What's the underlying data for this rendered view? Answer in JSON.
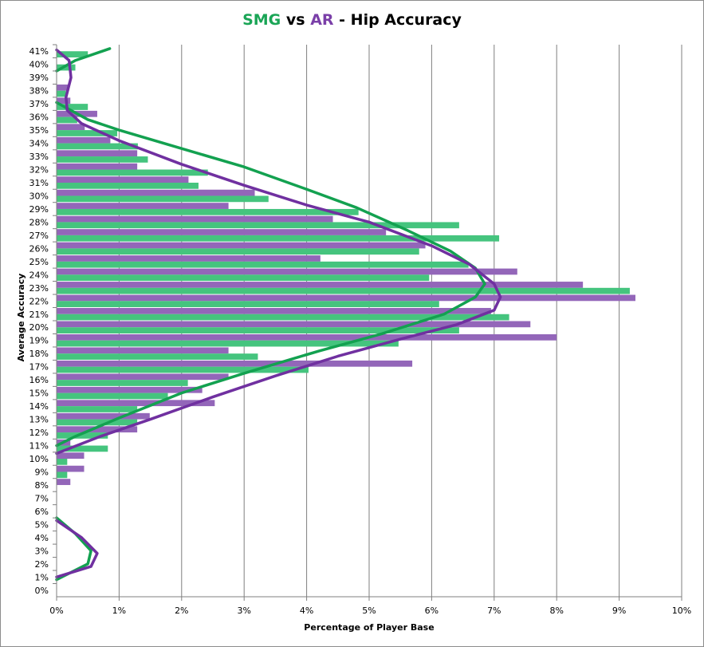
{
  "chart_data": {
    "type": "bar",
    "orientation": "horizontal",
    "title": {
      "part1": "SMG",
      "part2": " vs ",
      "part3": "AR",
      "part4": " - Hip Accuracy"
    },
    "xlabel": "Percentage of Player Base",
    "ylabel": "Average Accuracy",
    "xlim": [
      0,
      10
    ],
    "x_ticks": [
      "0%",
      "1%",
      "2%",
      "3%",
      "4%",
      "5%",
      "6%",
      "7%",
      "8%",
      "9%",
      "10%"
    ],
    "categories": [
      "0%",
      "1%",
      "2%",
      "3%",
      "4%",
      "5%",
      "6%",
      "7%",
      "8%",
      "9%",
      "10%",
      "11%",
      "12%",
      "13%",
      "14%",
      "15%",
      "16%",
      "17%",
      "18%",
      "19%",
      "20%",
      "21%",
      "22%",
      "23%",
      "24%",
      "25%",
      "26%",
      "27%",
      "28%",
      "29%",
      "30%",
      "31%",
      "32%",
      "33%",
      "34%",
      "35%",
      "36%",
      "37%",
      "38%",
      "39%",
      "40%",
      "41%"
    ],
    "grid": "vertical",
    "series": [
      {
        "name": "SMG",
        "color": "#45c47e",
        "values": [
          0,
          0,
          0,
          0,
          0,
          0,
          0,
          0,
          0,
          0.17,
          0.17,
          0.82,
          0.82,
          1.29,
          1.29,
          1.78,
          2.1,
          4.03,
          3.22,
          5.47,
          6.44,
          7.24,
          6.12,
          9.17,
          5.96,
          6.59,
          5.8,
          7.08,
          6.44,
          4.83,
          3.39,
          2.27,
          2.42,
          1.46,
          1.3,
          0.97,
          0.33,
          0.5,
          0.15,
          0,
          0.3,
          0.5
        ]
      },
      {
        "name": "AR",
        "color": "#9366b9",
        "values": [
          0,
          0,
          0,
          0,
          0,
          0,
          0,
          0,
          0.22,
          0.44,
          0.44,
          0.22,
          1.29,
          1.49,
          2.53,
          2.33,
          2.75,
          5.69,
          2.75,
          8.0,
          7.58,
          6.95,
          9.26,
          8.42,
          7.37,
          4.22,
          5.9,
          5.27,
          4.42,
          2.75,
          3.17,
          2.11,
          1.29,
          1.29,
          0.86,
          0.45,
          0.65,
          0.22,
          0.18,
          0,
          0,
          0
        ]
      }
    ],
    "trendlines": [
      {
        "series": "SMG",
        "color": "#13a150",
        "segments": [
          [
            [
              0,
              39.5
            ],
            [
              0.3,
              40.3
            ],
            [
              0.85,
              41.2
            ]
          ],
          [
            [
              0,
              37.1
            ],
            [
              0.5,
              35.8
            ],
            [
              1,
              35
            ],
            [
              2,
              33.6
            ],
            [
              3,
              32.2
            ],
            [
              4,
              30.5
            ],
            [
              4.8,
              29.1
            ],
            [
              5.6,
              27.4
            ],
            [
              6.3,
              25.8
            ],
            [
              6.7,
              24.5
            ],
            [
              6.85,
              23.3
            ],
            [
              6.7,
              22.3
            ],
            [
              6.2,
              21
            ],
            [
              5.2,
              19.5
            ],
            [
              4.2,
              18.2
            ],
            [
              3,
              16.5
            ],
            [
              2,
              15
            ],
            [
              1,
              13.1
            ],
            [
              0.3,
              11.7
            ],
            [
              0,
              11
            ]
          ],
          [
            [
              0,
              5.5
            ],
            [
              0.3,
              4.3
            ],
            [
              0.55,
              3
            ],
            [
              0.5,
              2
            ],
            [
              0,
              0.8
            ]
          ]
        ]
      },
      {
        "series": "AR",
        "color": "#7030a0",
        "segments": [
          [
            [
              0,
              41.1
            ],
            [
              0.2,
              40.3
            ],
            [
              0.23,
              39
            ],
            [
              0.15,
              37.5
            ],
            [
              0.17,
              36.5
            ],
            [
              0.4,
              35.5
            ],
            [
              1,
              34.2
            ],
            [
              2,
              32.4
            ],
            [
              3,
              30.8
            ],
            [
              4,
              29.3
            ],
            [
              5,
              28
            ],
            [
              6,
              26.2
            ],
            [
              6.6,
              24.8
            ],
            [
              7,
              23.3
            ],
            [
              7.1,
              22.3
            ],
            [
              7,
              21.3
            ],
            [
              6.4,
              20.2
            ],
            [
              5.5,
              19.1
            ],
            [
              4.5,
              17.8
            ],
            [
              3.5,
              16.3
            ],
            [
              2.5,
              14.7
            ],
            [
              1.5,
              13
            ],
            [
              0.7,
              11.7
            ],
            [
              0,
              10.4
            ]
          ],
          [
            [
              0,
              5.3
            ],
            [
              0.4,
              4
            ],
            [
              0.65,
              2.8
            ],
            [
              0.55,
              1.8
            ],
            [
              0,
              1
            ]
          ]
        ]
      }
    ]
  }
}
